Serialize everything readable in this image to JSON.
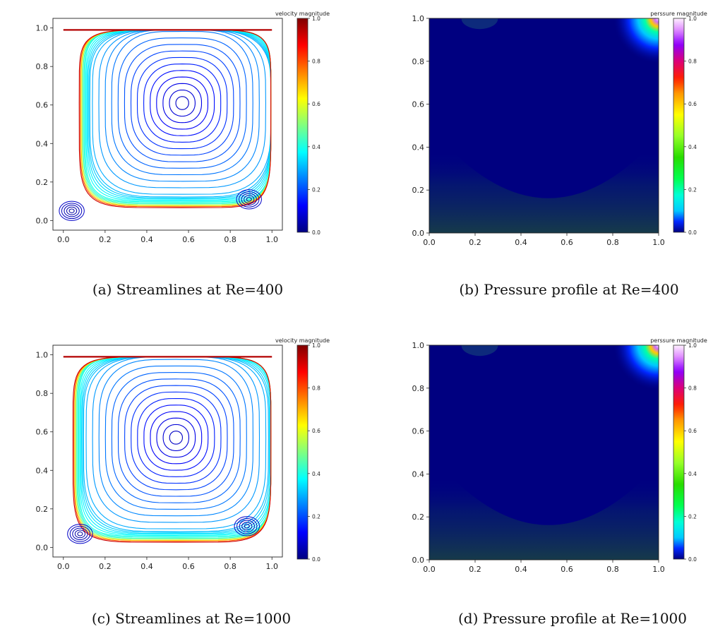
{
  "captions": {
    "a": "(a) Streamlines at Re=400",
    "b": "(b) Pressure profile at Re=400",
    "c": "(c) Streamlines at Re=1000",
    "d": "(d) Pressure profile at Re=1000"
  },
  "chart_data": [
    {
      "id": "a",
      "type": "streamline",
      "colorbar_label": "velocity magnitude",
      "colormap": "jet",
      "xlim": [
        -0.05,
        1.05
      ],
      "ylim": [
        -0.05,
        1.05
      ],
      "xticks": [
        0.0,
        0.2,
        0.4,
        0.6,
        0.8,
        1.0
      ],
      "yticks": [
        0.0,
        0.2,
        0.4,
        0.6,
        0.8,
        1.0
      ],
      "colorbar_range": [
        0.0,
        1.0
      ],
      "colorbar_ticks": [
        0.0,
        0.2,
        0.4,
        0.6,
        0.8,
        1.0
      ],
      "primary_vortex": [
        0.57,
        0.61
      ],
      "secondary_vortices": [
        [
          0.04,
          0.05
        ],
        [
          0.89,
          0.11
        ]
      ]
    },
    {
      "id": "b",
      "type": "heatmap",
      "colorbar_label": "perssure magnitude",
      "colormap": "gist_ncar",
      "xlim": [
        0.0,
        1.0
      ],
      "ylim": [
        0.0,
        1.0
      ],
      "xticks": [
        0.0,
        0.2,
        0.4,
        0.6,
        0.8,
        1.0
      ],
      "yticks": [
        0.0,
        0.2,
        0.4,
        0.6,
        0.8,
        1.0
      ],
      "colorbar_range": [
        0.0,
        1.0
      ],
      "colorbar_ticks": [
        0.0,
        0.2,
        0.4,
        0.6,
        0.8,
        1.0
      ],
      "peak_location": [
        1.0,
        1.0
      ]
    },
    {
      "id": "c",
      "type": "streamline",
      "colorbar_label": "velocity magnitude",
      "colormap": "jet",
      "xlim": [
        -0.05,
        1.05
      ],
      "ylim": [
        -0.05,
        1.05
      ],
      "xticks": [
        0.0,
        0.2,
        0.4,
        0.6,
        0.8,
        1.0
      ],
      "yticks": [
        0.0,
        0.2,
        0.4,
        0.6,
        0.8,
        1.0
      ],
      "colorbar_range": [
        0.0,
        1.0
      ],
      "colorbar_ticks": [
        0.0,
        0.2,
        0.4,
        0.6,
        0.8,
        1.0
      ],
      "primary_vortex": [
        0.54,
        0.57
      ],
      "secondary_vortices": [
        [
          0.08,
          0.07
        ],
        [
          0.88,
          0.11
        ]
      ]
    },
    {
      "id": "d",
      "type": "heatmap",
      "colorbar_label": "perssure magnitude",
      "colormap": "gist_ncar",
      "xlim": [
        0.0,
        1.0
      ],
      "ylim": [
        0.0,
        1.0
      ],
      "xticks": [
        0.0,
        0.2,
        0.4,
        0.6,
        0.8,
        1.0
      ],
      "yticks": [
        0.0,
        0.2,
        0.4,
        0.6,
        0.8,
        1.0
      ],
      "colorbar_range": [
        0.0,
        1.0
      ],
      "colorbar_ticks": [
        0.0,
        0.2,
        0.4,
        0.6,
        0.8,
        1.0
      ],
      "peak_location": [
        1.0,
        1.0
      ]
    }
  ]
}
